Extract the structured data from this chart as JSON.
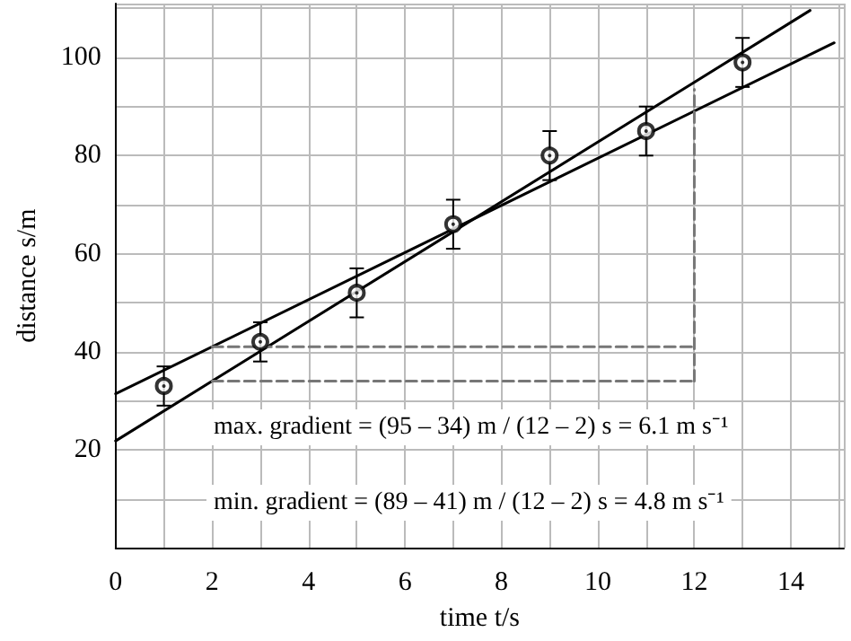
{
  "chart_data": {
    "type": "scatter",
    "xlabel": "time t/s",
    "ylabel": "distance s/m",
    "xlim": [
      0,
      15.1
    ],
    "ylim": [
      0,
      111
    ],
    "xticks": [
      0,
      2,
      4,
      6,
      8,
      10,
      12,
      14
    ],
    "yticks": [
      20,
      40,
      60,
      80,
      100
    ],
    "grid": true,
    "marker": "circle",
    "series": [
      {
        "color": "#000000",
        "x": [
          1,
          3,
          5,
          7,
          9,
          11,
          13
        ],
        "values": [
          33,
          42,
          52,
          66,
          80,
          85,
          99
        ],
        "errors": [
          4,
          4,
          5,
          5,
          5,
          5,
          5
        ]
      },
      {
        "type": "line",
        "color": "#000000",
        "x": [
          0,
          14.4
        ],
        "values": [
          21.8,
          109.6
        ],
        "marker": "none",
        "line_style": "solid"
      },
      {
        "type": "line",
        "color": "#000000",
        "x": [
          0,
          14.9
        ],
        "values": [
          31.4,
          103
        ],
        "marker": "none"
      },
      {
        "type": "line",
        "color": "#777777",
        "x": [
          2,
          12
        ],
        "values": [
          41,
          41
        ],
        "marker": "none",
        "line_style": "dashed"
      },
      {
        "type": "line",
        "color": "#777777",
        "x": [
          2,
          12
        ],
        "values": [
          34,
          34
        ],
        "marker": "none",
        "line_style": "dashed"
      },
      {
        "type": "line",
        "color": "#777777",
        "x": [
          12,
          12
        ],
        "values": [
          34,
          93.5
        ],
        "marker": "none",
        "line_style": "dashed"
      }
    ],
    "annotations": [
      "max. gradient = (95 – 34) m / (12 – 2) s = 6.1 m s⁻¹",
      "min. gradient = (89 – 41) m / (12 – 2) s = 4.8 m s⁻¹"
    ]
  }
}
